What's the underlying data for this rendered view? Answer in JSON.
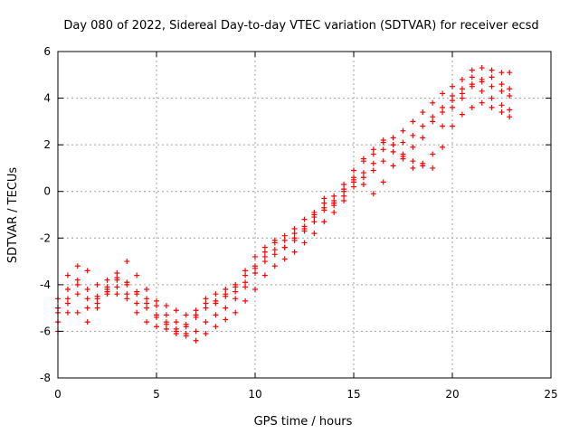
{
  "chart_data": {
    "type": "scatter",
    "title": "Day 080 of 2022, Sidereal Day-to-day VTEC variation (SDTVAR) for receiver ecsd",
    "xlabel": "GPS time / hours",
    "ylabel": "SDTVAR / TECUs",
    "xlim": [
      0,
      25
    ],
    "ylim": [
      -8,
      6
    ],
    "xticks": [
      0,
      5,
      10,
      15,
      20,
      25
    ],
    "yticks": [
      -8,
      -6,
      -4,
      -2,
      0,
      2,
      4,
      6
    ],
    "grid": true,
    "marker": "+",
    "color": "#ff0000",
    "series": [
      {
        "x": [
          0.0,
          0.5,
          1.0,
          1.5,
          2.0,
          2.5,
          3.0,
          3.5,
          4.0,
          4.5,
          5.0,
          5.5,
          6.0,
          6.5,
          7.0,
          7.5,
          8.0,
          8.5,
          9.0,
          9.5,
          10.0,
          10.5,
          11.0,
          11.5,
          12.0,
          12.5,
          13.0,
          13.5,
          14.0,
          14.5,
          15.0,
          15.5,
          16.0,
          16.5,
          17.0,
          17.5,
          18.0,
          18.5,
          19.0,
          19.5,
          20.0,
          20.5,
          21.0,
          21.5,
          22.0,
          22.5,
          22.9
        ],
        "y": [
          -6.0,
          -4.6,
          -4.0,
          -4.2,
          -4.6,
          -4.3,
          -4.1,
          -4.6,
          -4.8,
          -5.0,
          -5.3,
          -5.6,
          -6.0,
          -6.2,
          -6.4,
          -6.1,
          -5.8,
          -5.5,
          -5.2,
          -4.7,
          -4.2,
          -3.6,
          -3.2,
          -2.9,
          -2.6,
          -2.2,
          -1.8,
          -1.3,
          -0.9,
          -0.4,
          0.2,
          0.6,
          0.9,
          1.3,
          1.7,
          2.1,
          2.4,
          2.8,
          3.2,
          3.6,
          4.1,
          4.4,
          4.6,
          4.3,
          4.0,
          3.7,
          3.5
        ]
      },
      {
        "x": [
          0.0,
          0.5,
          1.0,
          1.5,
          2.0,
          2.5,
          3.0,
          3.5,
          4.0,
          4.5,
          5.0,
          5.5,
          6.0,
          6.5,
          7.0,
          7.5,
          8.0,
          8.5,
          9.0,
          9.5,
          10.0,
          10.5,
          11.0,
          11.5,
          12.0,
          12.5,
          13.0,
          13.5,
          14.0,
          14.5,
          15.0,
          15.5,
          16.0,
          16.5,
          17.0,
          17.5,
          18.0,
          18.5,
          19.0,
          19.5,
          20.0,
          20.5,
          21.0,
          21.5,
          22.0,
          22.5,
          22.9
        ],
        "y": [
          -5.2,
          -4.2,
          -3.8,
          -4.6,
          -5.0,
          -4.4,
          -3.8,
          -4.4,
          -5.2,
          -5.6,
          -5.8,
          -5.9,
          -6.1,
          -5.7,
          -5.3,
          -5.0,
          -4.7,
          -4.4,
          -4.1,
          -3.6,
          -3.2,
          -2.8,
          -2.5,
          -2.1,
          -1.8,
          -1.5,
          -1.1,
          -0.7,
          -0.4,
          0.1,
          0.5,
          0.3,
          -0.1,
          0.4,
          1.1,
          1.5,
          1.9,
          2.3,
          3.0,
          3.4,
          3.9,
          4.2,
          4.9,
          4.7,
          4.5,
          4.3,
          4.1
        ]
      },
      {
        "x": [
          0.0,
          0.5,
          1.0,
          1.5,
          2.0,
          2.5,
          3.0,
          3.5,
          4.0,
          4.5,
          5.0,
          5.5,
          6.0,
          6.5,
          7.0,
          7.5,
          8.0,
          8.5,
          9.0,
          9.5,
          10.0,
          10.5,
          11.0,
          11.5,
          12.0,
          12.5,
          13.0,
          13.5,
          14.0,
          14.5,
          15.0,
          15.5,
          16.0,
          16.5,
          17.0,
          17.5,
          18.0,
          18.5,
          19.0,
          19.5,
          20.0,
          20.5,
          21.0,
          21.5,
          22.0,
          22.5,
          22.9
        ],
        "y": [
          -4.6,
          -3.6,
          -3.2,
          -3.4,
          -4.0,
          -3.8,
          -3.5,
          -3.9,
          -4.4,
          -4.6,
          -4.7,
          -4.9,
          -5.1,
          -5.3,
          -5.4,
          -4.8,
          -4.4,
          -4.2,
          -4.0,
          -3.4,
          -2.8,
          -2.4,
          -2.2,
          -1.9,
          -1.6,
          -1.2,
          -0.9,
          -0.5,
          -0.2,
          0.3,
          0.9,
          1.3,
          1.6,
          2.1,
          2.3,
          2.6,
          3.0,
          3.4,
          3.8,
          4.2,
          4.5,
          4.8,
          5.2,
          5.3,
          5.2,
          5.1,
          5.1
        ]
      },
      {
        "x": [
          0.0,
          0.5,
          1.0,
          1.5,
          2.0,
          2.5,
          3.0,
          3.5,
          4.0,
          4.5,
          5.0,
          5.5,
          6.0,
          6.5,
          7.0,
          7.5,
          8.0,
          8.5,
          9.0,
          9.5,
          10.0,
          10.5,
          11.0,
          11.5,
          12.0,
          12.5,
          13.0,
          13.5,
          14.0,
          14.5,
          15.0,
          15.5,
          16.0,
          16.5,
          17.0,
          17.5,
          18.0,
          18.5,
          19.0,
          19.5,
          20.0,
          20.5,
          21.0,
          21.5,
          22.0,
          22.5,
          22.9
        ],
        "y": [
          -5.6,
          -5.2,
          -4.4,
          -5.0,
          -4.8,
          -4.1,
          -3.7,
          -4.0,
          -4.3,
          -4.8,
          -5.4,
          -5.7,
          -5.9,
          -6.1,
          -6.0,
          -5.6,
          -5.3,
          -5.0,
          -4.6,
          -4.1,
          -3.5,
          -3.0,
          -2.7,
          -2.4,
          -2.1,
          -1.7,
          -1.3,
          -0.8,
          -0.5,
          0.0,
          0.4,
          0.8,
          1.2,
          1.8,
          2.0,
          1.4,
          1.0,
          1.2,
          1.6,
          2.8,
          3.6,
          4.0,
          4.5,
          4.8,
          4.9,
          4.6,
          4.4
        ]
      },
      {
        "x": [
          0.0,
          0.5,
          1.0,
          1.5,
          2.0,
          2.5,
          3.0,
          3.5,
          4.0,
          4.5,
          5.0,
          5.5,
          6.0,
          6.5,
          7.0,
          7.5,
          8.0,
          8.5,
          9.0,
          9.5,
          10.0,
          10.5,
          11.0,
          11.5,
          12.0,
          12.5,
          13.0,
          13.5,
          14.0,
          14.5,
          15.0,
          15.5,
          16.0,
          16.5,
          17.0,
          17.5,
          18.0,
          18.5,
          19.0,
          19.5,
          20.0,
          20.5,
          21.0,
          21.5,
          22.0,
          22.5,
          22.9
        ],
        "y": [
          -5.0,
          -4.8,
          -5.2,
          -5.6,
          -4.5,
          -4.2,
          -4.4,
          -3.0,
          -3.6,
          -4.2,
          -4.9,
          -5.3,
          -5.6,
          -5.8,
          -5.1,
          -4.6,
          -4.8,
          -4.5,
          -4.3,
          -3.9,
          -3.3,
          -2.6,
          -2.1,
          -2.4,
          -2.0,
          -1.6,
          -1.0,
          -0.3,
          -0.6,
          -0.2,
          0.6,
          1.4,
          1.8,
          2.2,
          2.0,
          1.6,
          1.3,
          1.1,
          1.0,
          1.9,
          2.8,
          3.3,
          3.6,
          3.8,
          3.6,
          3.4,
          3.2
        ]
      }
    ]
  }
}
